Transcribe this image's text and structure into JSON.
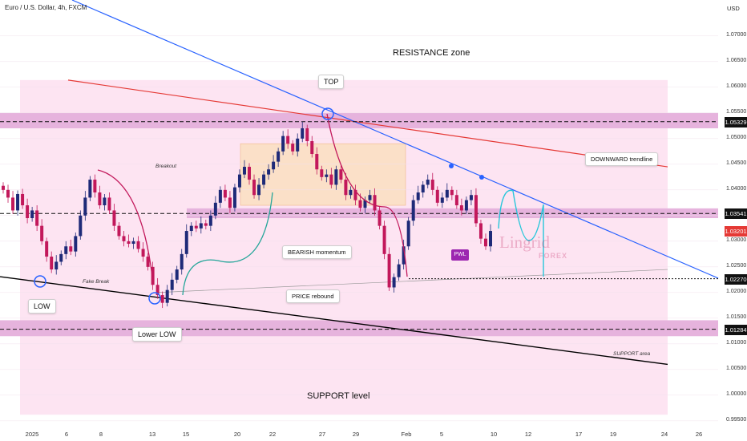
{
  "header": {
    "symbol": "Euro / U.S. Dollar, 4h, FXCM",
    "currency": "USD"
  },
  "chart_data": {
    "type": "candlestick",
    "x_ticks": [
      "2025",
      "6",
      "8",
      "13",
      "15",
      "20",
      "22",
      "27",
      "29",
      "Feb",
      "5",
      "10",
      "12",
      "17",
      "19",
      "24",
      "26"
    ],
    "y_ticks": [
      "1.07000",
      "1.06500",
      "1.06000",
      "1.05500",
      "1.05000",
      "1.04500",
      "1.04000",
      "1.03500",
      "1.03000",
      "1.02500",
      "1.02000",
      "1.01500",
      "1.01000",
      "1.00500",
      "1.00000",
      "0.99500"
    ],
    "ylim": [
      0.9942,
      1.077
    ],
    "levels": [
      {
        "name": "resistance",
        "value": 1.05329,
        "color": "#111111"
      },
      {
        "name": "breakout",
        "value": 1.03541,
        "color": "#111111"
      },
      {
        "name": "target",
        "value": 1.0227,
        "color": "#111111"
      },
      {
        "name": "support",
        "value": 1.01284,
        "color": "#111111"
      },
      {
        "name": "last-price",
        "value": 1.03201,
        "color": "#e53935"
      }
    ],
    "price_badges": [
      {
        "text": "1.05329",
        "bg": "#111111"
      },
      {
        "text": "1.03541",
        "bg": "#111111"
      },
      {
        "text": "1.03201",
        "bg": "#e53935"
      },
      {
        "text": "1.02270",
        "bg": "#111111"
      },
      {
        "text": "1.01284",
        "bg": "#111111"
      }
    ],
    "candle_colors": {
      "up": "#1e2a78",
      "down": "#c2185b"
    },
    "closes": [
      1.04,
      1.0385,
      1.036,
      1.0392,
      1.037,
      1.0345,
      1.036,
      1.033,
      1.03,
      1.027,
      1.0245,
      1.026,
      1.0275,
      1.029,
      1.028,
      1.031,
      1.035,
      1.0385,
      1.042,
      1.0395,
      1.037,
      1.0385,
      1.036,
      1.033,
      1.031,
      1.03,
      1.0295,
      1.03,
      1.0285,
      1.027,
      1.025,
      1.0215,
      1.0195,
      1.018,
      1.0205,
      1.0225,
      1.0245,
      1.0275,
      1.032,
      1.033,
      1.0325,
      1.0335,
      1.033,
      1.035,
      1.0375,
      1.04,
      1.0385,
      1.0365,
      1.0405,
      1.043,
      1.0445,
      1.042,
      1.039,
      1.041,
      1.043,
      1.044,
      1.0455,
      1.0475,
      1.0505,
      1.049,
      1.0475,
      1.05,
      1.052,
      1.0495,
      1.047,
      1.044,
      1.0425,
      1.043,
      1.041,
      1.044,
      1.042,
      1.039,
      1.04,
      1.038,
      1.0365,
      1.038,
      1.039,
      1.036,
      1.033,
      1.0275,
      1.021,
      1.023,
      1.0255,
      1.029,
      1.034,
      1.038,
      1.0395,
      1.041,
      1.042,
      1.04,
      1.0375,
      1.0385,
      1.04,
      1.039,
      1.037,
      1.036,
      1.038,
      1.039,
      1.0335,
      1.0305,
      1.029,
      1.032
    ],
    "lines": [
      {
        "name": "DOWNWARD trendline",
        "color": "#2962ff"
      },
      {
        "name": "upper-red-line",
        "color": "#e53935"
      },
      {
        "name": "support-trendline",
        "color": "#000000"
      }
    ]
  },
  "annotations": {
    "resistance_zone": "RESISTANCE zone",
    "top": "TOP",
    "breakout": "Breakout",
    "downward_trendline": "DOWNWARD trendline",
    "bearish_momentum": "BEARISH momentum",
    "pwl": "PWL",
    "fake_break": "Fake Break",
    "price_rebound": "PRICE rebound",
    "low": "LOW",
    "lower_low": "Lower LOW",
    "support_area": "SUPPORT area",
    "support_level": "SUPPORT level",
    "watermark_main": "Lingrid",
    "watermark_sub": "FOREX"
  }
}
